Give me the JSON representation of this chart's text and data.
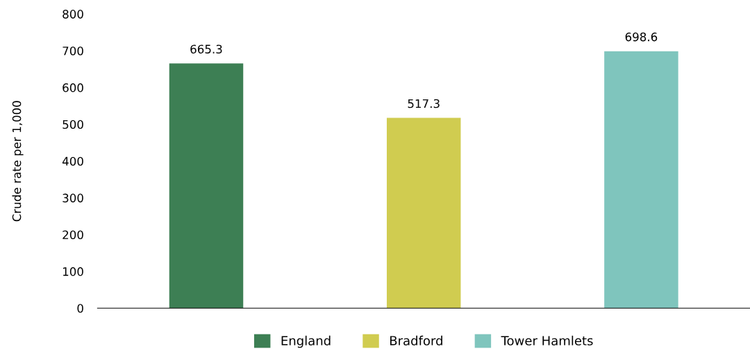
{
  "chart_data": {
    "type": "bar",
    "ylabel": "Crude rate per 1,000",
    "categories": [
      null,
      null,
      null
    ],
    "series": [
      {
        "name": "England",
        "color": "#3d7f54",
        "values": [
          665.3,
          null,
          null
        ]
      },
      {
        "name": "Bradford",
        "color": "#d0cc50",
        "values": [
          null,
          517.3,
          null
        ]
      },
      {
        "name": "Tower Hamlets",
        "color": "#7fc5bd",
        "values": [
          null,
          null,
          698.6
        ]
      }
    ],
    "ylim": [
      0,
      800
    ],
    "yticks": [
      0,
      100,
      200,
      300,
      400,
      500,
      600,
      700,
      800
    ],
    "grid": false,
    "legend": "bottom",
    "data_labels": true
  }
}
